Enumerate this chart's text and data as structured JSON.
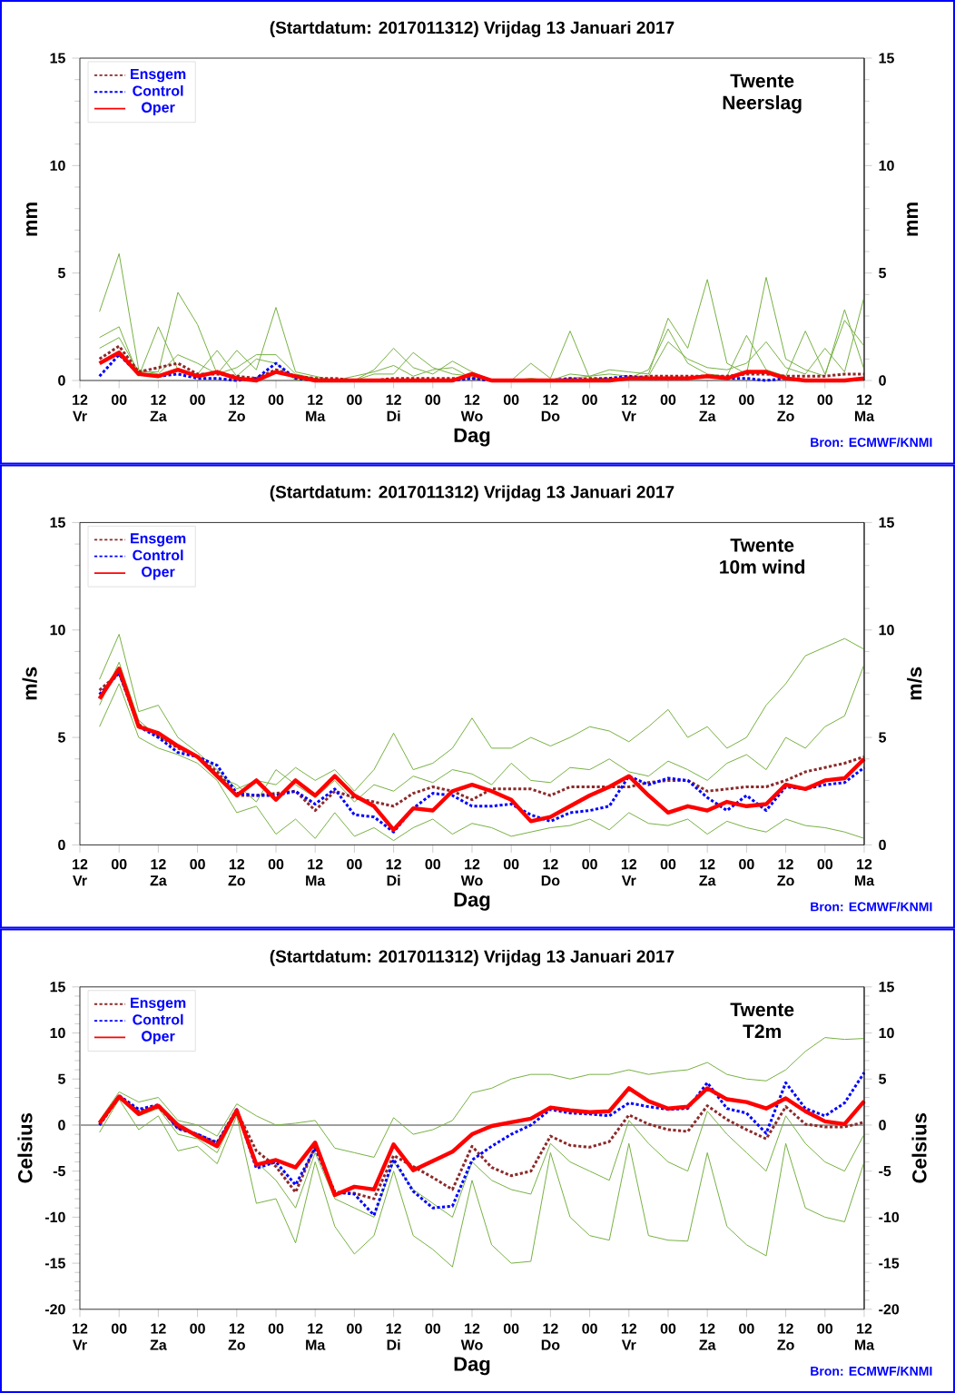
{
  "chart_data": [
    {
      "type": "line",
      "title": "(Startdatum: 2017011312) Vrijdag 13 Januari 2017",
      "xlabel": "Dag",
      "ylabel": "mm",
      "y2label": "mm",
      "annotations": [
        "Twente",
        "Neerslag",
        "Bron: ECMWF/KNMI"
      ],
      "categories": [
        "12 Vr",
        null,
        "00",
        null,
        "12 Za",
        null,
        "00",
        null,
        "12 Zo",
        null,
        "00",
        null,
        "12 Ma",
        null,
        "00",
        null,
        "12 Di",
        null,
        "00",
        null,
        "12 Wo",
        null,
        "00",
        null,
        "12 Do",
        null,
        "00",
        null,
        "12 Vr",
        null,
        "00",
        null,
        "12 Za",
        null,
        "00",
        null,
        "12 Zo",
        null,
        "00",
        null,
        "12 Ma"
      ],
      "ylim": [
        0,
        15
      ],
      "yticks": [
        0,
        5,
        10,
        15
      ],
      "y2lim": [
        0,
        15
      ],
      "y2ticks": [
        0,
        5,
        10,
        15
      ],
      "legend": "top left",
      "line_style": "solid",
      "series": [
        {
          "color": "#77b143",
          "values": [
            null,
            3.2,
            5.9,
            0.5,
            0.3,
            1.2,
            0.8,
            0.3,
            1.4,
            0.5,
            3.4,
            0.4,
            0.2,
            0,
            0,
            0.5,
            1.5,
            0.6,
            0.3,
            0.9,
            0.4,
            0,
            0,
            0.1,
            0,
            0.3,
            0.2,
            0.5,
            0.4,
            0.3,
            2.9,
            1.5,
            4.7,
            0.8,
            0.3,
            4.8,
            1.0,
            0.5,
            0.2,
            3.3,
            0.5
          ]
        },
        {
          "color": "#77b143",
          "values": [
            null,
            2.0,
            2.5,
            0.2,
            2.5,
            0.5,
            0.3,
            1.4,
            0.2,
            1.0,
            0.8,
            0,
            0,
            0,
            0,
            0.3,
            0.3,
            1.3,
            0.6,
            0.3,
            0.2,
            0,
            0,
            0.8,
            0.1,
            2.3,
            0.1,
            0.1,
            0.1,
            0.5,
            2.4,
            0.8,
            0.3,
            0.2,
            2.1,
            0.5,
            0.2,
            2.3,
            0.3,
            2.8,
            1.6
          ]
        },
        {
          "color": "#77b143",
          "values": [
            null,
            1.5,
            2.0,
            0.4,
            0.4,
            4.1,
            2.6,
            0.3,
            0.6,
            1.2,
            1.2,
            0.3,
            0.1,
            0,
            0.2,
            0.4,
            0.7,
            0.2,
            0.5,
            0.6,
            0.1,
            0,
            0,
            0,
            0,
            0.1,
            0.2,
            0.3,
            0.2,
            0.2,
            1.8,
            1.0,
            0.6,
            0.5,
            0.8,
            1.8,
            0.6,
            0.3,
            1.5,
            0.4,
            3.9
          ]
        },
        {
          "name": "Ensgem",
          "color": "#8b2a2a",
          "line_style": "dotted",
          "values": [
            null,
            1.0,
            1.6,
            0.4,
            0.6,
            0.8,
            0.3,
            0.3,
            0.2,
            0.1,
            0.5,
            0.2,
            0.1,
            0.1,
            0,
            0,
            0.1,
            0.1,
            0.1,
            0.1,
            0.1,
            0,
            0,
            0,
            0,
            0,
            0.1,
            0.1,
            0.1,
            0.2,
            0.2,
            0.2,
            0.2,
            0.2,
            0.3,
            0.3,
            0.2,
            0.2,
            0.2,
            0.3,
            0.3
          ]
        },
        {
          "name": "Control",
          "color": "#0000ff",
          "line_style": "dotted",
          "values": [
            null,
            0.2,
            1.2,
            0.3,
            0.2,
            0.3,
            0.1,
            0.1,
            0,
            0.1,
            0.8,
            0.1,
            0,
            0,
            0,
            0,
            0,
            0,
            0,
            0,
            0.1,
            0,
            0,
            0,
            0,
            0.1,
            0,
            0.1,
            0.2,
            0.1,
            0.1,
            0.1,
            null,
            0.1,
            0.1,
            0,
            0.1,
            0,
            null,
            null,
            null
          ]
        },
        {
          "name": "Oper",
          "color": "#ff0000",
          "values": [
            null,
            0.8,
            1.3,
            0.3,
            0.2,
            0.5,
            0.2,
            0.4,
            0.1,
            0,
            0.4,
            0.2,
            0,
            0,
            0,
            0,
            0,
            0,
            0,
            0,
            0.3,
            0,
            0,
            0,
            0,
            0,
            0,
            0,
            0.1,
            0.1,
            0.1,
            0.1,
            0.2,
            0.1,
            0.4,
            0.4,
            0.1,
            0,
            0,
            0,
            0.1
          ]
        }
      ]
    },
    {
      "type": "line",
      "title": "(Startdatum: 2017011312) Vrijdag 13 Januari 2017",
      "xlabel": "Dag",
      "ylabel": "m/s",
      "y2label": "m/s",
      "annotations": [
        "Twente",
        "10m wind",
        "Bron: ECMWF/KNMI"
      ],
      "categories": [
        "12 Vr",
        null,
        "00",
        null,
        "12 Za",
        null,
        "00",
        null,
        "12 Zo",
        null,
        "00",
        null,
        "12 Ma",
        null,
        "00",
        null,
        "12 Di",
        null,
        "00",
        null,
        "12 Wo",
        null,
        "00",
        null,
        "12 Do",
        null,
        "00",
        null,
        "12 Vr",
        null,
        "00",
        null,
        "12 Za",
        null,
        "00",
        null,
        "12 Zo",
        null,
        "00",
        null,
        "12 Ma"
      ],
      "ylim": [
        0,
        15
      ],
      "yticks": [
        0,
        5,
        10,
        15
      ],
      "y2lim": [
        0,
        15
      ],
      "y2ticks": [
        0,
        5,
        10,
        15
      ],
      "legend": "top left",
      "line_style": "solid",
      "series": [
        {
          "color": "#77b143",
          "values": [
            null,
            7.7,
            9.8,
            6.2,
            6.5,
            5.0,
            4.3,
            3.5,
            2.6,
            3.0,
            2.8,
            3.6,
            3.0,
            3.5,
            2.5,
            3.5,
            5.2,
            3.5,
            3.8,
            4.5,
            5.9,
            4.5,
            4.5,
            5.0,
            4.6,
            5.0,
            5.5,
            5.3,
            4.8,
            5.5,
            6.3,
            5.0,
            5.5,
            4.5,
            5.0,
            6.5,
            7.5,
            8.8,
            9.2,
            9.6,
            9.1
          ]
        },
        {
          "color": "#77b143",
          "values": [
            null,
            5.5,
            7.5,
            5.0,
            4.5,
            4.2,
            3.8,
            3.0,
            1.5,
            1.8,
            0.5,
            1.2,
            0.3,
            1.5,
            0.4,
            0.8,
            0.2,
            0.8,
            1.2,
            0.5,
            1.0,
            0.8,
            0.4,
            0.6,
            0.8,
            0.9,
            1.2,
            0.7,
            1.5,
            1.0,
            0.9,
            1.2,
            0.5,
            1.1,
            0.8,
            0.6,
            1.2,
            0.9,
            0.8,
            0.6,
            0.3
          ]
        },
        {
          "color": "#77b143",
          "values": [
            null,
            6.5,
            8.5,
            5.8,
            5.0,
            4.6,
            4.0,
            3.2,
            2.8,
            2.0,
            3.5,
            2.8,
            2.2,
            3.0,
            2.0,
            2.8,
            2.5,
            3.2,
            2.9,
            3.5,
            3.3,
            2.8,
            3.8,
            3.0,
            2.9,
            3.6,
            3.5,
            4.0,
            3.4,
            3.2,
            3.9,
            3.5,
            3.0,
            3.8,
            4.2,
            3.5,
            5.0,
            4.5,
            5.5,
            6.0,
            8.4
          ]
        },
        {
          "name": "Ensgem",
          "color": "#8b2a2a",
          "line_style": "dotted",
          "values": [
            null,
            7.2,
            8.0,
            5.6,
            5.1,
            4.5,
            4.1,
            3.4,
            2.3,
            2.3,
            2.4,
            2.5,
            1.6,
            2.5,
            2.2,
            2.0,
            1.8,
            2.4,
            2.7,
            2.5,
            2.1,
            2.6,
            2.6,
            2.6,
            2.3,
            2.7,
            2.7,
            2.7,
            2.7,
            2.9,
            3.0,
            3.0,
            2.5,
            2.6,
            2.7,
            2.7,
            3.0,
            3.4,
            3.6,
            3.8,
            4.1
          ]
        },
        {
          "name": "Control",
          "color": "#0000ff",
          "line_style": "dotted",
          "values": [
            null,
            7.0,
            8.0,
            5.5,
            5.0,
            4.3,
            4.1,
            3.7,
            2.4,
            2.3,
            2.3,
            2.5,
            1.9,
            2.6,
            1.4,
            1.3,
            0.6,
            1.7,
            2.4,
            2.3,
            1.8,
            1.8,
            1.9,
            1.4,
            1.1,
            1.5,
            1.6,
            1.8,
            3.2,
            2.8,
            3.1,
            3.0,
            2.2,
            1.6,
            2.3,
            1.6,
            2.7,
            2.6,
            2.8,
            2.9,
            3.6
          ]
        },
        {
          "name": "Oper",
          "color": "#ff0000",
          "values": [
            null,
            6.8,
            8.2,
            5.5,
            5.2,
            4.6,
            4.1,
            3.2,
            2.3,
            3.0,
            2.1,
            3.0,
            2.3,
            3.2,
            2.3,
            1.8,
            0.7,
            1.7,
            1.6,
            2.5,
            2.8,
            2.5,
            2.1,
            1.1,
            1.3,
            1.8,
            2.3,
            2.7,
            3.2,
            2.3,
            1.5,
            1.8,
            1.6,
            2.0,
            1.8,
            1.9,
            2.8,
            2.6,
            3.0,
            3.1,
            4.0
          ]
        }
      ]
    },
    {
      "type": "line",
      "title": "(Startdatum: 2017011312) Vrijdag 13 Januari 2017",
      "xlabel": "Dag",
      "ylabel": "Celsius",
      "y2label": "Celsius",
      "annotations": [
        "Twente",
        "T2m",
        "Bron: ECMWF/KNMI"
      ],
      "categories": [
        "12 Vr",
        null,
        "00",
        null,
        "12 Za",
        null,
        "00",
        null,
        "12 Zo",
        null,
        "00",
        null,
        "12 Ma",
        null,
        "00",
        null,
        "12 Di",
        null,
        "00",
        null,
        "12 Wo",
        null,
        "00",
        null,
        "12 Do",
        null,
        "00",
        null,
        "12 Vr",
        null,
        "00",
        null,
        "12 Za",
        null,
        "00",
        null,
        "12 Zo",
        null,
        "00",
        null,
        "12 Ma"
      ],
      "ylim": [
        -20,
        15
      ],
      "yticks": [
        -20,
        -15,
        -10,
        -5,
        0,
        5,
        10,
        15
      ],
      "y2lim": [
        -20,
        15
      ],
      "y2ticks": [
        -20,
        -15,
        -10,
        -5,
        0,
        5,
        10,
        15
      ],
      "legend": "top left",
      "line_style": "solid",
      "ref_lines": [
        {
          "axis": "y",
          "value": 0,
          "color": "#a0a0a0"
        }
      ],
      "series": [
        {
          "color": "#77b143",
          "values": [
            null,
            -0.8,
            2.8,
            -0.5,
            1.0,
            -2.8,
            -2.3,
            -4.2,
            1.0,
            -8.5,
            -8.0,
            -12.8,
            -4.0,
            -11.0,
            -14.0,
            -12.0,
            -5.0,
            -12.0,
            -13.5,
            -15.4,
            -6.0,
            -13.0,
            -15.0,
            -14.8,
            -3.0,
            -10.0,
            -12.0,
            -12.5,
            -2.0,
            -12.0,
            -12.5,
            -12.6,
            -3.0,
            -11.0,
            -13.0,
            -14.2,
            -2.0,
            -9.0,
            -10.0,
            -10.5,
            -4.0
          ]
        },
        {
          "color": "#77b143",
          "values": [
            null,
            0.5,
            3.6,
            2.5,
            3.0,
            0.5,
            0.0,
            -1.2,
            2.3,
            1.0,
            0.0,
            0.2,
            0.5,
            -2.5,
            -3.0,
            -3.5,
            0.8,
            -1.0,
            -0.5,
            0.5,
            3.5,
            4.0,
            5.0,
            5.5,
            5.5,
            5.0,
            5.5,
            5.5,
            6.0,
            5.5,
            5.8,
            6.0,
            6.8,
            5.5,
            5.0,
            4.8,
            6.0,
            8.0,
            9.5,
            9.3,
            9.4
          ]
        },
        {
          "color": "#77b143",
          "values": [
            null,
            0.0,
            3.2,
            1.0,
            1.8,
            -1.0,
            -1.5,
            -3.0,
            1.5,
            -4.0,
            -6.0,
            -9.0,
            -3.0,
            -8.0,
            -9.0,
            -10.0,
            -4.0,
            -7.0,
            -8.5,
            -10.0,
            -4.0,
            -6.0,
            -7.0,
            -7.5,
            -2.0,
            -4.0,
            -5.0,
            -6.0,
            0.5,
            -2.0,
            -4.0,
            -5.0,
            1.5,
            -1.0,
            -3.0,
            -5.0,
            1.0,
            -2.0,
            -4.0,
            -5.0,
            -1.0
          ]
        },
        {
          "name": "Ensgem",
          "color": "#8b2a2a",
          "line_style": "dotted",
          "values": [
            null,
            0.0,
            3.0,
            1.5,
            2.0,
            -0.3,
            -1.0,
            -2.0,
            1.5,
            -2.8,
            -4.5,
            -7.3,
            -2.3,
            -7.3,
            -7.4,
            -8.0,
            -3.3,
            -4.5,
            -5.7,
            -7.0,
            -2.3,
            -4.6,
            -5.5,
            -5.0,
            -1.2,
            -2.2,
            -2.4,
            -1.8,
            1.1,
            0.1,
            -0.5,
            -0.7,
            2.1,
            0.6,
            -0.5,
            -1.5,
            2.0,
            0.1,
            -0.2,
            -0.2,
            0.3
          ]
        },
        {
          "name": "Control",
          "color": "#0000ff",
          "line_style": "dotted",
          "values": [
            null,
            0.0,
            3.2,
            1.7,
            2.2,
            -0.4,
            -1.0,
            -1.9,
            1.7,
            -4.7,
            -4.0,
            -6.5,
            -2.5,
            -7.3,
            -7.5,
            -9.8,
            -3.7,
            -7.2,
            -9.0,
            -8.8,
            -3.8,
            -2.3,
            -1.0,
            0.0,
            1.7,
            1.3,
            1.2,
            1.0,
            2.4,
            2.0,
            1.7,
            1.8,
            4.6,
            1.8,
            1.3,
            -0.9,
            4.6,
            1.8,
            1.0,
            2.4,
            5.7
          ]
        },
        {
          "name": "Oper",
          "color": "#ff0000",
          "values": [
            null,
            0.2,
            3.1,
            1.2,
            2.1,
            0.0,
            -1.2,
            -2.3,
            1.6,
            -4.3,
            -3.8,
            -4.6,
            -1.9,
            -7.6,
            -6.7,
            -7.0,
            -2.1,
            -4.9,
            -3.9,
            -2.9,
            -1.0,
            -0.1,
            0.3,
            0.7,
            1.9,
            1.6,
            1.4,
            1.5,
            4.0,
            2.6,
            1.8,
            2.0,
            4.0,
            2.8,
            2.5,
            1.8,
            2.9,
            1.5,
            0.4,
            0.1,
            2.6
          ]
        }
      ]
    }
  ]
}
